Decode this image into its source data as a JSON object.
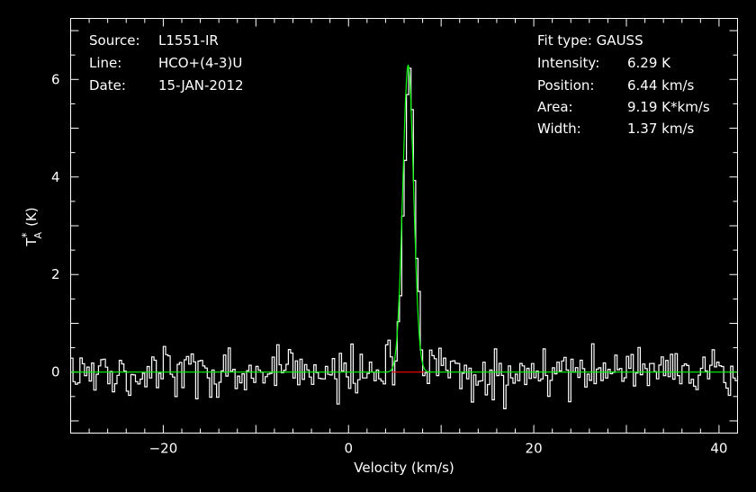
{
  "chart_data": {
    "type": "line",
    "xlabel": "Velocity (km/s)",
    "ylabel_main": "T",
    "ylabel_star": "*",
    "ylabel_sub": "A",
    "ylabel_unit": "(K)",
    "xlim": [
      -30.0,
      42.0
    ],
    "ylim": [
      -1.25,
      7.25
    ],
    "x_ticks_major": [
      -20,
      0,
      20,
      40
    ],
    "y_ticks_major": [
      0,
      2,
      4,
      6
    ],
    "info_left": [
      {
        "key": "Source:",
        "value": "L1551-IR"
      },
      {
        "key": "Line:",
        "value": "HCO+(4-3)U"
      },
      {
        "key": "Date:",
        "value": "15-JAN-2012"
      }
    ],
    "fit_type": "Fit type: GAUSS",
    "info_right": [
      {
        "key": "Intensity:",
        "value": "6.29 K"
      },
      {
        "key": "Position:",
        "value": "6.44 km/s"
      },
      {
        "key": "Area:",
        "value": "9.19 K*km/s"
      },
      {
        "key": "Width:",
        "value": "1.37 km/s"
      }
    ],
    "series": [
      {
        "channel_width": 0.25,
        "noise_rms": 0.25,
        "color": "#ffffff"
      },
      {
        "amplitude": 6.29,
        "center": 6.44,
        "fwhm": 1.37,
        "color": "#00ff00"
      },
      {
        "value": 0.0,
        "color": "#ff0000"
      }
    ]
  }
}
